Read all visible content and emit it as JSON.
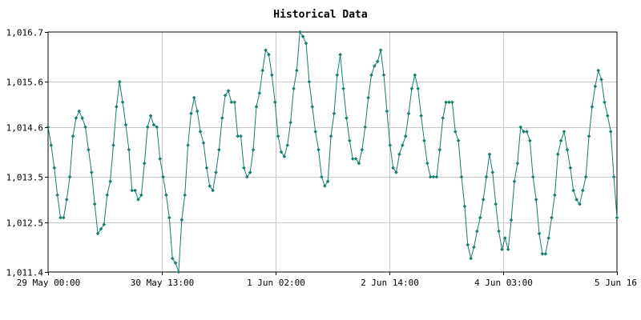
{
  "chart_data": {
    "type": "line",
    "title": "Historical Data",
    "xlabel": "",
    "ylabel": "",
    "ylim": [
      1011.4,
      1016.7
    ],
    "y_ticks": [
      {
        "value": 1011.4,
        "label": "1,011.4"
      },
      {
        "value": 1012.5,
        "label": "1,012.5"
      },
      {
        "value": 1013.5,
        "label": "1,013.5"
      },
      {
        "value": 1014.6,
        "label": "1,014.6"
      },
      {
        "value": 1015.6,
        "label": "1,015.6"
      },
      {
        "value": 1016.7,
        "label": "1,016.7"
      }
    ],
    "x_ticks": [
      "29 May 00:00",
      "30 May 13:00",
      "1 Jun 02:00",
      "2 Jun 14:00",
      "4 Jun 03:00",
      "5 Jun 16"
    ],
    "x_range_hours": [
      0,
      184
    ],
    "grid": true,
    "colors": {
      "line": "#147d6f",
      "marker": "#147d6f",
      "grid": "#c8c8c8",
      "axis": "#000000"
    },
    "series": [
      {
        "values": [
          1014.6,
          1014.2,
          1013.7,
          1013.1,
          1012.6,
          1012.6,
          1013.0,
          1013.5,
          1014.4,
          1014.8,
          1014.95,
          1014.8,
          1014.6,
          1014.1,
          1013.6,
          1012.9,
          1012.25,
          1012.35,
          1012.45,
          1013.1,
          1013.4,
          1014.2,
          1015.05,
          1015.6,
          1015.15,
          1014.65,
          1014.1,
          1013.2,
          1013.2,
          1013.0,
          1013.1,
          1013.8,
          1014.6,
          1014.85,
          1014.65,
          1014.6,
          1013.9,
          1013.5,
          1013.1,
          1012.6,
          1011.7,
          1011.6,
          1011.4,
          1012.55,
          1013.1,
          1014.2,
          1014.9,
          1015.25,
          1014.95,
          1014.5,
          1014.25,
          1013.7,
          1013.3,
          1013.2,
          1013.6,
          1014.1,
          1014.8,
          1015.3,
          1015.4,
          1015.15,
          1015.15,
          1014.4,
          1014.4,
          1013.7,
          1013.5,
          1013.6,
          1014.1,
          1015.05,
          1015.35,
          1015.85,
          1016.3,
          1016.2,
          1015.75,
          1015.15,
          1014.4,
          1014.05,
          1013.95,
          1014.2,
          1014.7,
          1015.45,
          1015.85,
          1016.7,
          1016.6,
          1016.45,
          1015.6,
          1015.05,
          1014.5,
          1014.1,
          1013.5,
          1013.3,
          1013.4,
          1014.4,
          1014.9,
          1015.75,
          1016.2,
          1015.45,
          1014.8,
          1014.3,
          1013.9,
          1013.9,
          1013.8,
          1014.1,
          1014.6,
          1015.25,
          1015.75,
          1015.95,
          1016.05,
          1016.3,
          1015.75,
          1014.95,
          1014.2,
          1013.7,
          1013.6,
          1014.0,
          1014.2,
          1014.4,
          1014.9,
          1015.45,
          1015.75,
          1015.45,
          1014.85,
          1014.3,
          1013.8,
          1013.5,
          1013.5,
          1013.5,
          1014.1,
          1014.8,
          1015.15,
          1015.15,
          1015.15,
          1014.5,
          1014.3,
          1013.5,
          1012.85,
          1012.0,
          1011.7,
          1011.95,
          1012.3,
          1012.6,
          1013.0,
          1013.5,
          1014.0,
          1013.6,
          1012.9,
          1012.3,
          1011.9,
          1012.15,
          1011.9,
          1012.55,
          1013.4,
          1013.8,
          1014.6,
          1014.5,
          1014.5,
          1014.3,
          1013.5,
          1013.0,
          1012.25,
          1011.8,
          1011.8,
          1012.15,
          1012.6,
          1013.1,
          1014.0,
          1014.3,
          1014.5,
          1014.1,
          1013.7,
          1013.2,
          1013.0,
          1012.9,
          1013.2,
          1013.5,
          1014.4,
          1015.05,
          1015.5,
          1015.85,
          1015.65,
          1015.15,
          1014.85,
          1014.5,
          1013.5,
          1012.6
        ]
      }
    ]
  }
}
